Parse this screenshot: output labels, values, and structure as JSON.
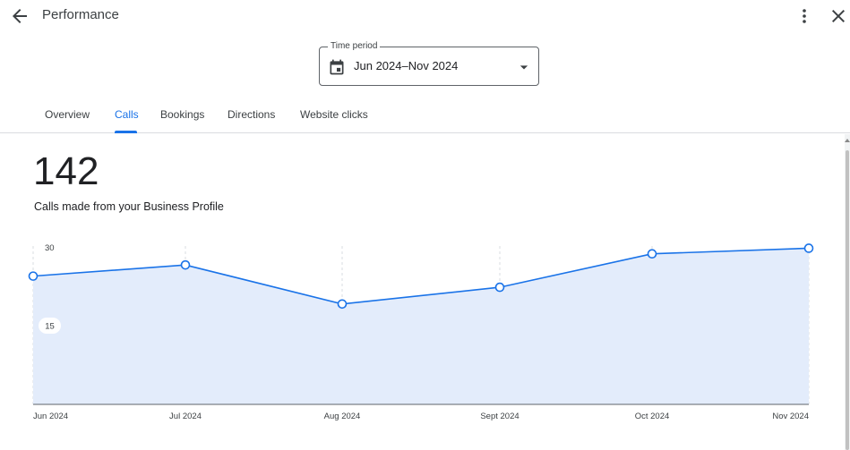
{
  "header": {
    "title": "Performance",
    "back_icon": "arrow-back-icon",
    "more_icon": "more-vert-icon",
    "close_icon": "close-icon"
  },
  "time_period": {
    "label": "Time period",
    "value": "Jun 2024–Nov 2024",
    "calendar_icon": "calendar-icon",
    "dropdown_icon": "caret-down-icon"
  },
  "tabs": [
    {
      "label": "Overview",
      "active": false
    },
    {
      "label": "Calls",
      "active": true
    },
    {
      "label": "Bookings",
      "active": false
    },
    {
      "label": "Directions",
      "active": false
    },
    {
      "label": "Website clicks",
      "active": false
    }
  ],
  "metric": {
    "value": "142",
    "description": "Calls made from your Business Profile"
  },
  "colors": {
    "accent": "#1a73e8",
    "fill": "#e3ecfb",
    "line": "#1a73e8"
  },
  "chart_data": {
    "type": "area",
    "categories": [
      "Jun 2024",
      "Jul 2024",
      "Aug 2024",
      "Sept 2024",
      "Oct 2024",
      "Nov 2024"
    ],
    "values": [
      23,
      25,
      18,
      21,
      27,
      28
    ],
    "yticks": [
      "30",
      "15"
    ],
    "ylim": [
      0,
      30
    ],
    "grid": "vertical-dashed"
  }
}
